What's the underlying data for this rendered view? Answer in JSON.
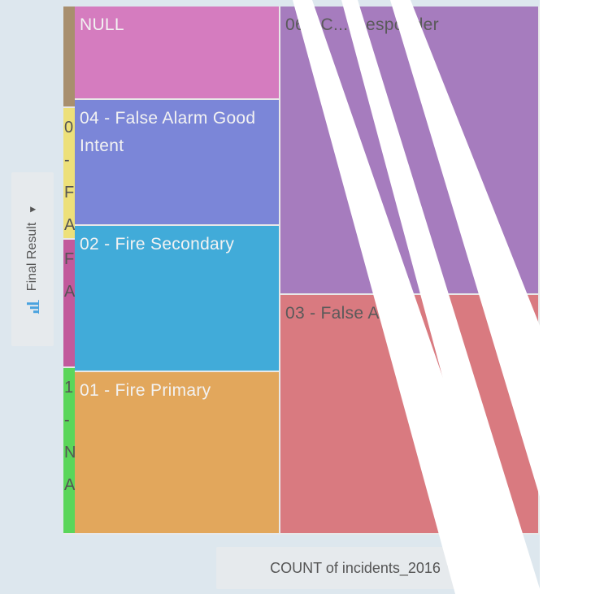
{
  "colors": {
    "null": "#d57cbf",
    "false_alarm_good_intent": "#7b86d8",
    "fire_secondary": "#41abd9",
    "fire_primary": "#e2a75c",
    "co_responder": "#a67cbe",
    "false_alarm": "#d97a80"
  },
  "y_axis": {
    "label": "Final Result",
    "icon": "bar-chart-icon"
  },
  "x_axis": {
    "label": "COUNT of incidents_2016"
  },
  "chart_data": {
    "type": "heatmap",
    "title": "",
    "xlabel": "COUNT of incidents_2016",
    "ylabel": "Final Result",
    "cells": [
      {
        "label": "NULL",
        "color": "#d57cbf"
      },
      {
        "label": "04 - False Alarm Good Intent",
        "color": "#7b86d8"
      },
      {
        "label": "02 - Fire Secondary",
        "color": "#41abd9"
      },
      {
        "label": "01 - Fire Primary",
        "color": "#e2a75c"
      },
      {
        "label": "06 - C... Responder",
        "color": "#a67cbe"
      },
      {
        "label": "03 - False Alarm",
        "color": "#d97a80"
      }
    ],
    "strips": [
      {
        "label": "",
        "color": "#a88f6e"
      },
      {
        "label": "0 - F A",
        "color": "#ede07a"
      },
      {
        "label": "F A",
        "color": "#c25a9c"
      },
      {
        "label": "1 - N A",
        "color": "#5ad65a"
      }
    ]
  }
}
